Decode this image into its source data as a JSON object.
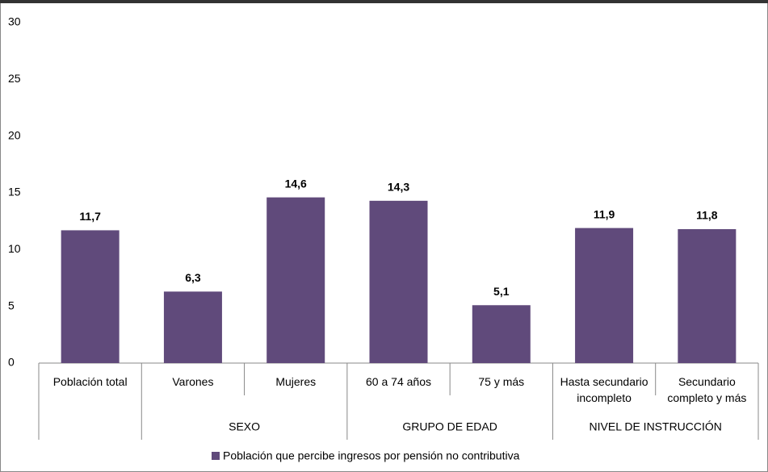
{
  "chart_data": {
    "type": "bar",
    "categories": [
      "Población total",
      "Varones",
      "Mujeres",
      "60 a 74 años",
      "75 y más",
      "Hasta secundario\nincompleto",
      "Secundario\ncompleto y más"
    ],
    "groups": [
      null,
      "SEXO",
      "SEXO",
      "GRUPO DE EDAD",
      "GRUPO DE EDAD",
      "NIVEL DE INSTRUCCIÓN",
      "NIVEL DE INSTRUCCIÓN"
    ],
    "series": [
      {
        "name": "Población que percibe ingresos por pensión no contributiva",
        "color": "#604a7b",
        "values": [
          11.7,
          6.3,
          14.6,
          14.3,
          5.1,
          11.9,
          11.8
        ],
        "value_labels": [
          "11,7",
          "6,3",
          "14,6",
          "14,3",
          "5,1",
          "11,9",
          "11,8"
        ]
      }
    ],
    "ylim": [
      0,
      30
    ],
    "yticks": [
      0,
      5,
      10,
      15,
      20,
      25,
      30
    ],
    "grid": false,
    "legend": "bottom"
  }
}
